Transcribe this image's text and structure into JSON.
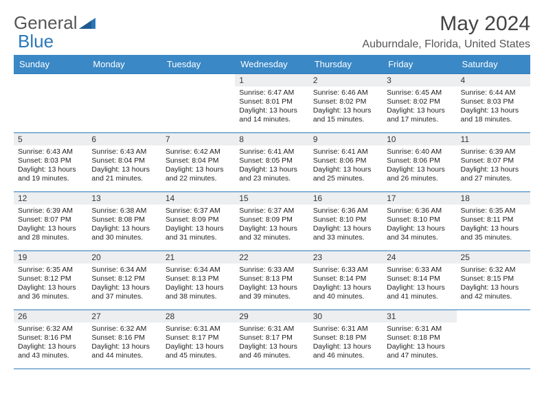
{
  "brand": {
    "part1": "General",
    "part2": "Blue"
  },
  "title": "May 2024",
  "location": "Auburndale, Florida, United States",
  "colors": {
    "header_bg": "#3a88c6",
    "header_text": "#ffffff",
    "border": "#2a77b8",
    "daynum_bg": "#eceef0",
    "logo_gray": "#555555",
    "logo_blue": "#2a77b8"
  },
  "fonts": {
    "title_size": 30,
    "location_size": 16,
    "weekday_size": 13,
    "daynum_size": 12,
    "body_size": 10.5
  },
  "weekdays": [
    "Sunday",
    "Monday",
    "Tuesday",
    "Wednesday",
    "Thursday",
    "Friday",
    "Saturday"
  ],
  "weeks": [
    [
      {
        "n": "",
        "sunrise": "",
        "sunset": "",
        "daylight": ""
      },
      {
        "n": "",
        "sunrise": "",
        "sunset": "",
        "daylight": ""
      },
      {
        "n": "",
        "sunrise": "",
        "sunset": "",
        "daylight": ""
      },
      {
        "n": "1",
        "sunrise": "Sunrise: 6:47 AM",
        "sunset": "Sunset: 8:01 PM",
        "daylight": "Daylight: 13 hours and 14 minutes."
      },
      {
        "n": "2",
        "sunrise": "Sunrise: 6:46 AM",
        "sunset": "Sunset: 8:02 PM",
        "daylight": "Daylight: 13 hours and 15 minutes."
      },
      {
        "n": "3",
        "sunrise": "Sunrise: 6:45 AM",
        "sunset": "Sunset: 8:02 PM",
        "daylight": "Daylight: 13 hours and 17 minutes."
      },
      {
        "n": "4",
        "sunrise": "Sunrise: 6:44 AM",
        "sunset": "Sunset: 8:03 PM",
        "daylight": "Daylight: 13 hours and 18 minutes."
      }
    ],
    [
      {
        "n": "5",
        "sunrise": "Sunrise: 6:43 AM",
        "sunset": "Sunset: 8:03 PM",
        "daylight": "Daylight: 13 hours and 19 minutes."
      },
      {
        "n": "6",
        "sunrise": "Sunrise: 6:43 AM",
        "sunset": "Sunset: 8:04 PM",
        "daylight": "Daylight: 13 hours and 21 minutes."
      },
      {
        "n": "7",
        "sunrise": "Sunrise: 6:42 AM",
        "sunset": "Sunset: 8:04 PM",
        "daylight": "Daylight: 13 hours and 22 minutes."
      },
      {
        "n": "8",
        "sunrise": "Sunrise: 6:41 AM",
        "sunset": "Sunset: 8:05 PM",
        "daylight": "Daylight: 13 hours and 23 minutes."
      },
      {
        "n": "9",
        "sunrise": "Sunrise: 6:41 AM",
        "sunset": "Sunset: 8:06 PM",
        "daylight": "Daylight: 13 hours and 25 minutes."
      },
      {
        "n": "10",
        "sunrise": "Sunrise: 6:40 AM",
        "sunset": "Sunset: 8:06 PM",
        "daylight": "Daylight: 13 hours and 26 minutes."
      },
      {
        "n": "11",
        "sunrise": "Sunrise: 6:39 AM",
        "sunset": "Sunset: 8:07 PM",
        "daylight": "Daylight: 13 hours and 27 minutes."
      }
    ],
    [
      {
        "n": "12",
        "sunrise": "Sunrise: 6:39 AM",
        "sunset": "Sunset: 8:07 PM",
        "daylight": "Daylight: 13 hours and 28 minutes."
      },
      {
        "n": "13",
        "sunrise": "Sunrise: 6:38 AM",
        "sunset": "Sunset: 8:08 PM",
        "daylight": "Daylight: 13 hours and 30 minutes."
      },
      {
        "n": "14",
        "sunrise": "Sunrise: 6:37 AM",
        "sunset": "Sunset: 8:09 PM",
        "daylight": "Daylight: 13 hours and 31 minutes."
      },
      {
        "n": "15",
        "sunrise": "Sunrise: 6:37 AM",
        "sunset": "Sunset: 8:09 PM",
        "daylight": "Daylight: 13 hours and 32 minutes."
      },
      {
        "n": "16",
        "sunrise": "Sunrise: 6:36 AM",
        "sunset": "Sunset: 8:10 PM",
        "daylight": "Daylight: 13 hours and 33 minutes."
      },
      {
        "n": "17",
        "sunrise": "Sunrise: 6:36 AM",
        "sunset": "Sunset: 8:10 PM",
        "daylight": "Daylight: 13 hours and 34 minutes."
      },
      {
        "n": "18",
        "sunrise": "Sunrise: 6:35 AM",
        "sunset": "Sunset: 8:11 PM",
        "daylight": "Daylight: 13 hours and 35 minutes."
      }
    ],
    [
      {
        "n": "19",
        "sunrise": "Sunrise: 6:35 AM",
        "sunset": "Sunset: 8:12 PM",
        "daylight": "Daylight: 13 hours and 36 minutes."
      },
      {
        "n": "20",
        "sunrise": "Sunrise: 6:34 AM",
        "sunset": "Sunset: 8:12 PM",
        "daylight": "Daylight: 13 hours and 37 minutes."
      },
      {
        "n": "21",
        "sunrise": "Sunrise: 6:34 AM",
        "sunset": "Sunset: 8:13 PM",
        "daylight": "Daylight: 13 hours and 38 minutes."
      },
      {
        "n": "22",
        "sunrise": "Sunrise: 6:33 AM",
        "sunset": "Sunset: 8:13 PM",
        "daylight": "Daylight: 13 hours and 39 minutes."
      },
      {
        "n": "23",
        "sunrise": "Sunrise: 6:33 AM",
        "sunset": "Sunset: 8:14 PM",
        "daylight": "Daylight: 13 hours and 40 minutes."
      },
      {
        "n": "24",
        "sunrise": "Sunrise: 6:33 AM",
        "sunset": "Sunset: 8:14 PM",
        "daylight": "Daylight: 13 hours and 41 minutes."
      },
      {
        "n": "25",
        "sunrise": "Sunrise: 6:32 AM",
        "sunset": "Sunset: 8:15 PM",
        "daylight": "Daylight: 13 hours and 42 minutes."
      }
    ],
    [
      {
        "n": "26",
        "sunrise": "Sunrise: 6:32 AM",
        "sunset": "Sunset: 8:16 PM",
        "daylight": "Daylight: 13 hours and 43 minutes."
      },
      {
        "n": "27",
        "sunrise": "Sunrise: 6:32 AM",
        "sunset": "Sunset: 8:16 PM",
        "daylight": "Daylight: 13 hours and 44 minutes."
      },
      {
        "n": "28",
        "sunrise": "Sunrise: 6:31 AM",
        "sunset": "Sunset: 8:17 PM",
        "daylight": "Daylight: 13 hours and 45 minutes."
      },
      {
        "n": "29",
        "sunrise": "Sunrise: 6:31 AM",
        "sunset": "Sunset: 8:17 PM",
        "daylight": "Daylight: 13 hours and 46 minutes."
      },
      {
        "n": "30",
        "sunrise": "Sunrise: 6:31 AM",
        "sunset": "Sunset: 8:18 PM",
        "daylight": "Daylight: 13 hours and 46 minutes."
      },
      {
        "n": "31",
        "sunrise": "Sunrise: 6:31 AM",
        "sunset": "Sunset: 8:18 PM",
        "daylight": "Daylight: 13 hours and 47 minutes."
      },
      {
        "n": "",
        "sunrise": "",
        "sunset": "",
        "daylight": ""
      }
    ]
  ]
}
